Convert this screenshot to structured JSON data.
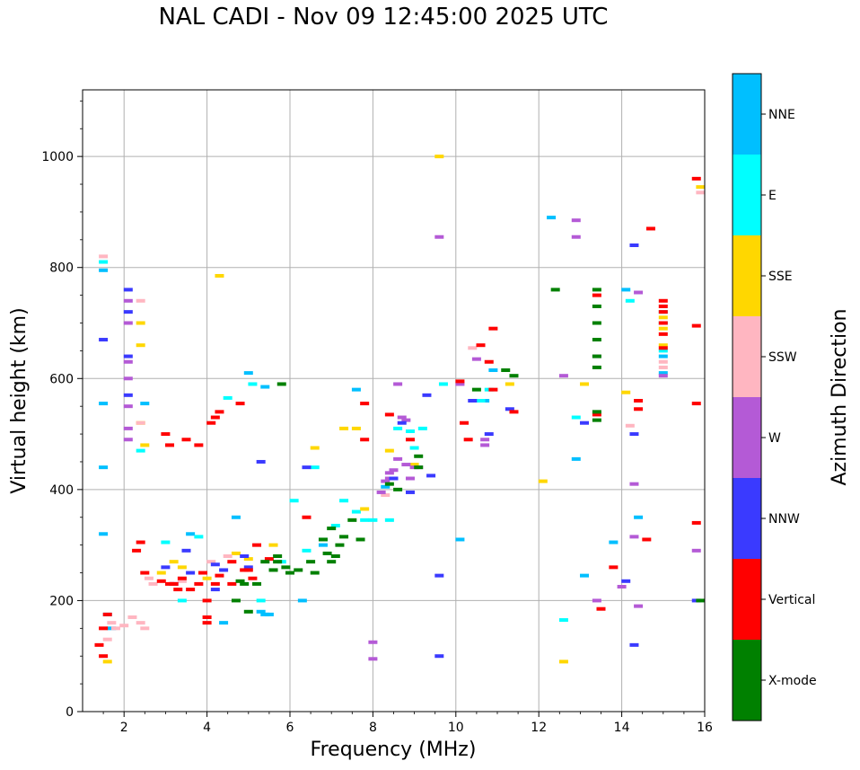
{
  "chart_data": {
    "type": "scatter",
    "title": "NAL CADI - Nov 09 12:45:00 2025 UTC",
    "xlabel": "Frequency (MHz)",
    "ylabel": "Virtual height (km)",
    "xlim": [
      1,
      16
    ],
    "ylim": [
      0,
      1120
    ],
    "xticks": [
      2,
      4,
      6,
      8,
      10,
      12,
      14,
      16
    ],
    "yticks": [
      0,
      200,
      400,
      600,
      800,
      1000
    ],
    "grid": true,
    "colorbar": {
      "label": "Azimuth Direction",
      "categories": [
        {
          "name": "X-mode",
          "color": "#008000"
        },
        {
          "name": "Vertical",
          "color": "#ff0000"
        },
        {
          "name": "NNW",
          "color": "#3a3aff"
        },
        {
          "name": "W",
          "color": "#b45ad6"
        },
        {
          "name": "SSW",
          "color": "#ffb6c1"
        },
        {
          "name": "SSE",
          "color": "#ffd700"
        },
        {
          "name": "E",
          "color": "#00ffff"
        },
        {
          "name": "NNE",
          "color": "#00bfff"
        }
      ]
    },
    "series": [
      {
        "name": "NNE",
        "points": [
          [
            1.5,
            795
          ],
          [
            1.5,
            555
          ],
          [
            1.5,
            440
          ],
          [
            1.5,
            320
          ],
          [
            1.6,
            175
          ],
          [
            1.7,
            150
          ],
          [
            2.5,
            555
          ],
          [
            4.4,
            160
          ],
          [
            4.7,
            350
          ],
          [
            5.0,
            610
          ],
          [
            5.3,
            180
          ],
          [
            5.4,
            175
          ],
          [
            5.4,
            585
          ],
          [
            6.3,
            200
          ],
          [
            7.6,
            580
          ],
          [
            8.3,
            405
          ],
          [
            10.1,
            310
          ],
          [
            10.7,
            560
          ],
          [
            10.9,
            615
          ],
          [
            12.3,
            890
          ],
          [
            12.9,
            455
          ],
          [
            13.1,
            245
          ],
          [
            13.8,
            305
          ],
          [
            14.1,
            760
          ],
          [
            14.4,
            350
          ],
          [
            15.0,
            610
          ],
          [
            15.0,
            640
          ],
          [
            3.6,
            320
          ],
          [
            5.5,
            175
          ],
          [
            6.8,
            300
          ]
        ]
      },
      {
        "name": "E",
        "points": [
          [
            1.5,
            810
          ],
          [
            2.4,
            470
          ],
          [
            3.0,
            305
          ],
          [
            3.4,
            200
          ],
          [
            3.8,
            315
          ],
          [
            4.5,
            565
          ],
          [
            5.1,
            590
          ],
          [
            5.8,
            270
          ],
          [
            6.4,
            290
          ],
          [
            6.8,
            310
          ],
          [
            7.1,
            335
          ],
          [
            7.3,
            380
          ],
          [
            7.6,
            360
          ],
          [
            7.8,
            345
          ],
          [
            8.0,
            345
          ],
          [
            8.4,
            345
          ],
          [
            8.6,
            510
          ],
          [
            8.9,
            505
          ],
          [
            9.0,
            475
          ],
          [
            9.2,
            510
          ],
          [
            9.7,
            590
          ],
          [
            10.6,
            560
          ],
          [
            10.8,
            580
          ],
          [
            12.6,
            165
          ],
          [
            12.9,
            530
          ],
          [
            15.0,
            650
          ],
          [
            15.0,
            700
          ],
          [
            15.0,
            720
          ],
          [
            14.2,
            740
          ],
          [
            5.3,
            200
          ],
          [
            6.1,
            380
          ],
          [
            6.6,
            440
          ]
        ]
      },
      {
        "name": "SSE",
        "points": [
          [
            1.6,
            90
          ],
          [
            2.4,
            700
          ],
          [
            2.4,
            660
          ],
          [
            2.4,
            520
          ],
          [
            2.5,
            480
          ],
          [
            2.9,
            250
          ],
          [
            3.2,
            270
          ],
          [
            4.3,
            785
          ],
          [
            4.7,
            285
          ],
          [
            5.0,
            275
          ],
          [
            5.6,
            300
          ],
          [
            6.6,
            475
          ],
          [
            7.3,
            510
          ],
          [
            7.6,
            510
          ],
          [
            7.8,
            365
          ],
          [
            8.4,
            470
          ],
          [
            9.0,
            445
          ],
          [
            9.6,
            1000
          ],
          [
            11.3,
            590
          ],
          [
            12.1,
            415
          ],
          [
            12.6,
            90
          ],
          [
            13.1,
            590
          ],
          [
            14.1,
            575
          ],
          [
            15.0,
            660
          ],
          [
            15.0,
            690
          ],
          [
            15.0,
            710
          ],
          [
            15.9,
            945
          ],
          [
            4.0,
            240
          ],
          [
            3.4,
            260
          ]
        ]
      },
      {
        "name": "SSW",
        "points": [
          [
            1.5,
            820
          ],
          [
            1.6,
            130
          ],
          [
            1.8,
            150
          ],
          [
            2.2,
            170
          ],
          [
            2.4,
            160
          ],
          [
            2.5,
            150
          ],
          [
            2.4,
            520
          ],
          [
            2.4,
            740
          ],
          [
            2.6,
            240
          ],
          [
            2.7,
            230
          ],
          [
            3.2,
            230
          ],
          [
            3.4,
            235
          ],
          [
            4.5,
            280
          ],
          [
            4.1,
            270
          ],
          [
            8.3,
            390
          ],
          [
            10.4,
            655
          ],
          [
            14.2,
            515
          ],
          [
            15.0,
            620
          ],
          [
            15.0,
            630
          ],
          [
            15.9,
            935
          ],
          [
            1.7,
            160
          ],
          [
            2.0,
            155
          ]
        ]
      },
      {
        "name": "W",
        "points": [
          [
            2.1,
            740
          ],
          [
            2.1,
            700
          ],
          [
            2.1,
            630
          ],
          [
            2.1,
            600
          ],
          [
            2.1,
            550
          ],
          [
            2.1,
            510
          ],
          [
            2.1,
            490
          ],
          [
            8.4,
            430
          ],
          [
            8.4,
            420
          ],
          [
            8.5,
            435
          ],
          [
            8.6,
            455
          ],
          [
            8.6,
            590
          ],
          [
            8.8,
            445
          ],
          [
            8.9,
            420
          ],
          [
            9.0,
            440
          ],
          [
            9.1,
            440
          ],
          [
            9.6,
            855
          ],
          [
            10.1,
            590
          ],
          [
            10.5,
            635
          ],
          [
            10.7,
            480
          ],
          [
            10.7,
            490
          ],
          [
            12.6,
            605
          ],
          [
            12.9,
            885
          ],
          [
            12.9,
            855
          ],
          [
            13.4,
            640
          ],
          [
            13.4,
            200
          ],
          [
            14.0,
            225
          ],
          [
            14.3,
            410
          ],
          [
            14.3,
            315
          ],
          [
            14.4,
            190
          ],
          [
            14.4,
            755
          ],
          [
            15.0,
            605
          ],
          [
            15.8,
            290
          ],
          [
            8.7,
            530
          ],
          [
            8.8,
            525
          ],
          [
            8.0,
            125
          ],
          [
            8.0,
            95
          ],
          [
            8.2,
            395
          ],
          [
            8.3,
            415
          ]
        ]
      },
      {
        "name": "NNW",
        "points": [
          [
            1.5,
            670
          ],
          [
            2.1,
            760
          ],
          [
            2.1,
            720
          ],
          [
            2.1,
            640
          ],
          [
            2.1,
            570
          ],
          [
            3.0,
            260
          ],
          [
            3.2,
            230
          ],
          [
            3.5,
            290
          ],
          [
            4.2,
            265
          ],
          [
            4.4,
            255
          ],
          [
            4.9,
            280
          ],
          [
            5.0,
            260
          ],
          [
            5.3,
            450
          ],
          [
            6.4,
            440
          ],
          [
            8.5,
            420
          ],
          [
            8.7,
            520
          ],
          [
            8.9,
            395
          ],
          [
            9.3,
            570
          ],
          [
            9.4,
            425
          ],
          [
            9.6,
            245
          ],
          [
            9.6,
            100
          ],
          [
            10.4,
            560
          ],
          [
            10.8,
            500
          ],
          [
            11.3,
            545
          ],
          [
            13.1,
            520
          ],
          [
            14.1,
            235
          ],
          [
            14.3,
            500
          ],
          [
            14.3,
            120
          ],
          [
            14.3,
            840
          ],
          [
            15.8,
            200
          ],
          [
            4.2,
            220
          ],
          [
            3.6,
            250
          ]
        ]
      },
      {
        "name": "Vertical",
        "points": [
          [
            1.5,
            150
          ],
          [
            1.5,
            100
          ],
          [
            1.6,
            175
          ],
          [
            2.3,
            290
          ],
          [
            2.4,
            305
          ],
          [
            2.5,
            250
          ],
          [
            3.0,
            500
          ],
          [
            3.1,
            480
          ],
          [
            3.2,
            230
          ],
          [
            3.4,
            240
          ],
          [
            3.5,
            490
          ],
          [
            3.6,
            220
          ],
          [
            3.8,
            480
          ],
          [
            3.9,
            250
          ],
          [
            4.0,
            200
          ],
          [
            4.0,
            170
          ],
          [
            4.0,
            160
          ],
          [
            4.1,
            520
          ],
          [
            4.2,
            530
          ],
          [
            4.3,
            540
          ],
          [
            4.3,
            245
          ],
          [
            4.6,
            230
          ],
          [
            4.8,
            555
          ],
          [
            4.9,
            255
          ],
          [
            5.1,
            240
          ],
          [
            5.2,
            300
          ],
          [
            6.4,
            350
          ],
          [
            7.8,
            555
          ],
          [
            7.8,
            490
          ],
          [
            8.4,
            535
          ],
          [
            8.9,
            490
          ],
          [
            10.1,
            595
          ],
          [
            10.2,
            520
          ],
          [
            10.3,
            490
          ],
          [
            10.6,
            660
          ],
          [
            10.8,
            630
          ],
          [
            10.9,
            690
          ],
          [
            10.9,
            580
          ],
          [
            11.4,
            540
          ],
          [
            13.4,
            750
          ],
          [
            13.4,
            535
          ],
          [
            13.5,
            185
          ],
          [
            13.8,
            260
          ],
          [
            14.4,
            560
          ],
          [
            14.4,
            545
          ],
          [
            14.6,
            310
          ],
          [
            14.7,
            870
          ],
          [
            15.0,
            740
          ],
          [
            15.0,
            730
          ],
          [
            15.0,
            720
          ],
          [
            15.0,
            700
          ],
          [
            15.0,
            680
          ],
          [
            15.0,
            655
          ],
          [
            15.8,
            960
          ],
          [
            15.8,
            695
          ],
          [
            15.8,
            555
          ],
          [
            15.8,
            340
          ],
          [
            3.1,
            230
          ],
          [
            2.9,
            235
          ],
          [
            3.8,
            230
          ],
          [
            4.2,
            230
          ],
          [
            4.6,
            270
          ],
          [
            5.0,
            255
          ],
          [
            5.5,
            275
          ],
          [
            3.3,
            220
          ],
          [
            1.4,
            120
          ]
        ]
      },
      {
        "name": "X-mode",
        "points": [
          [
            4.7,
            200
          ],
          [
            4.9,
            230
          ],
          [
            5.0,
            180
          ],
          [
            5.4,
            270
          ],
          [
            5.6,
            255
          ],
          [
            5.7,
            280
          ],
          [
            5.8,
            590
          ],
          [
            5.9,
            260
          ],
          [
            6.0,
            250
          ],
          [
            6.2,
            255
          ],
          [
            6.5,
            270
          ],
          [
            6.6,
            250
          ],
          [
            6.9,
            285
          ],
          [
            7.0,
            270
          ],
          [
            7.1,
            280
          ],
          [
            7.2,
            300
          ],
          [
            7.3,
            315
          ],
          [
            7.5,
            345
          ],
          [
            7.7,
            310
          ],
          [
            8.4,
            410
          ],
          [
            8.6,
            400
          ],
          [
            9.1,
            460
          ],
          [
            9.1,
            440
          ],
          [
            10.5,
            580
          ],
          [
            11.2,
            615
          ],
          [
            11.4,
            605
          ],
          [
            12.4,
            760
          ],
          [
            13.4,
            760
          ],
          [
            13.4,
            730
          ],
          [
            13.4,
            700
          ],
          [
            13.4,
            670
          ],
          [
            13.4,
            640
          ],
          [
            13.4,
            620
          ],
          [
            13.4,
            540
          ],
          [
            13.4,
            525
          ],
          [
            15.9,
            200
          ],
          [
            6.8,
            310
          ],
          [
            7.0,
            330
          ],
          [
            5.2,
            230
          ],
          [
            4.8,
            235
          ],
          [
            5.7,
            270
          ]
        ]
      }
    ]
  }
}
